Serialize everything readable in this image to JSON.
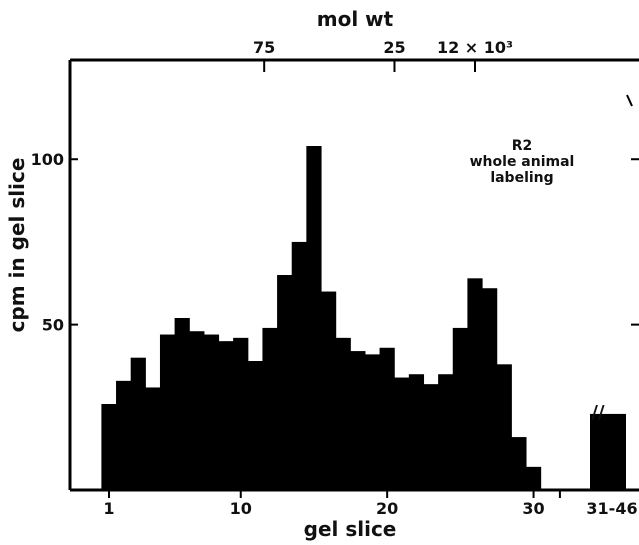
{
  "chart_data": {
    "type": "bar",
    "top_axis_label": "mol wt",
    "top_ticks": [
      {
        "label": "75",
        "slice": 11.6
      },
      {
        "label": "25",
        "slice": 20.5
      },
      {
        "label": "12 × 10³",
        "slice": 26.0
      }
    ],
    "xlabel": "gel slice",
    "ylabel": "cpm in gel slice",
    "x_ticks": [
      {
        "label": "1",
        "slice": 1
      },
      {
        "label": "10",
        "slice": 10
      },
      {
        "label": "20",
        "slice": 20
      },
      {
        "label": "30",
        "slice": 30
      },
      {
        "label": "31-46",
        "slice": 31.8
      }
    ],
    "y_ticks": [
      50,
      100
    ],
    "ylim": [
      0,
      130
    ],
    "annotation": [
      "R2",
      "whole animal",
      "labeling"
    ],
    "break_marker": "//",
    "bars": [
      {
        "slice": 1,
        "value": 26
      },
      {
        "slice": 2,
        "value": 33
      },
      {
        "slice": 3,
        "value": 40
      },
      {
        "slice": 4,
        "value": 31
      },
      {
        "slice": 5,
        "value": 47
      },
      {
        "slice": 6,
        "value": 52
      },
      {
        "slice": 7,
        "value": 48
      },
      {
        "slice": 8,
        "value": 47
      },
      {
        "slice": 9,
        "value": 45
      },
      {
        "slice": 10,
        "value": 46
      },
      {
        "slice": 11,
        "value": 39
      },
      {
        "slice": 12,
        "value": 49
      },
      {
        "slice": 13,
        "value": 65
      },
      {
        "slice": 14,
        "value": 75
      },
      {
        "slice": 15,
        "value": 104
      },
      {
        "slice": 16,
        "value": 60
      },
      {
        "slice": 17,
        "value": 46
      },
      {
        "slice": 18,
        "value": 42
      },
      {
        "slice": 19,
        "value": 41
      },
      {
        "slice": 20,
        "value": 43
      },
      {
        "slice": 21,
        "value": 34
      },
      {
        "slice": 22,
        "value": 35
      },
      {
        "slice": 23,
        "value": 32
      },
      {
        "slice": 24,
        "value": 35
      },
      {
        "slice": 25,
        "value": 49
      },
      {
        "slice": 26,
        "value": 64
      },
      {
        "slice": 27,
        "value": 61
      },
      {
        "slice": 28,
        "value": 38
      },
      {
        "slice": 29,
        "value": 16
      },
      {
        "slice": 30,
        "value": 7
      },
      {
        "slice": "31-46",
        "value": 23
      }
    ],
    "colors": {
      "bars": "#000000",
      "axes": "#000000",
      "text": "#111111"
    }
  }
}
